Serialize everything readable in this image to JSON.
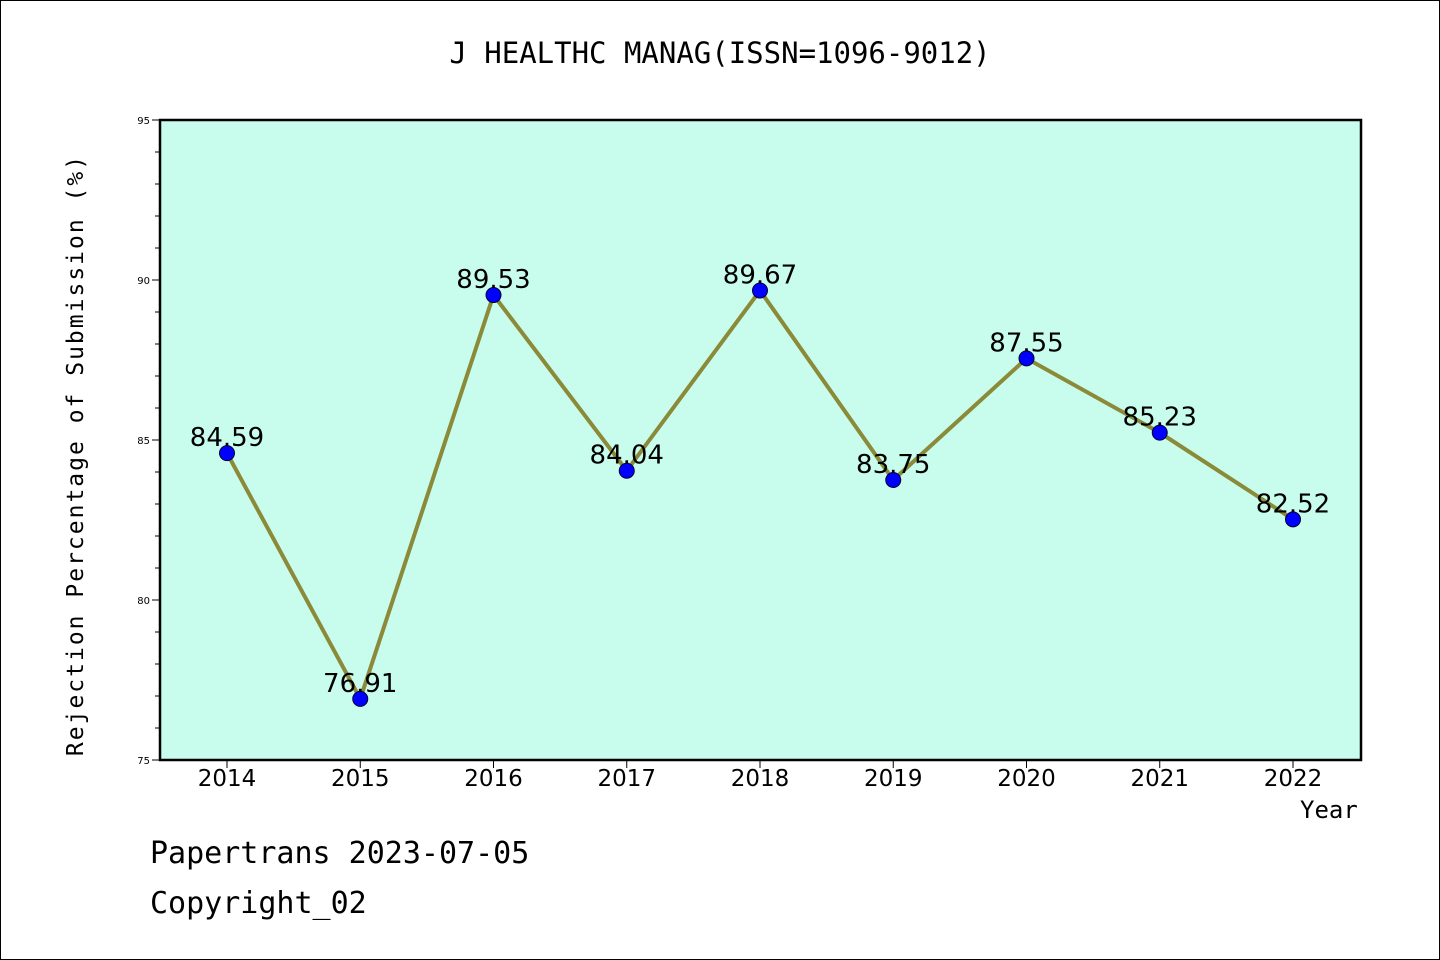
{
  "header": {
    "title": "J HEALTHC MANAG(ISSN=1096-9012)"
  },
  "footer": {
    "line1": "Papertrans 2023-07-05",
    "line2": "Copyright_02"
  },
  "colors": {
    "plot_bg": "#c8fced",
    "line": "#8a8a38",
    "marker": "#0000ff",
    "axis": "#000000"
  },
  "chart_data": {
    "type": "line",
    "title": "J HEALTHC MANAG(ISSN=1096-9012)",
    "xlabel": "Year",
    "ylabel": "Rejection Percentage of Submission (%)",
    "categories": [
      "2014",
      "2015",
      "2016",
      "2017",
      "2018",
      "2019",
      "2020",
      "2021",
      "2022"
    ],
    "values": [
      84.59,
      76.91,
      89.53,
      84.04,
      89.67,
      83.75,
      87.55,
      85.23,
      82.52
    ],
    "data_labels": [
      "84.59",
      "76.91",
      "89.53",
      "84.04",
      "89.67",
      "83.75",
      "87.55",
      "85.23",
      "82.52"
    ],
    "ylim": [
      75,
      95
    ],
    "yticks": [
      75,
      80,
      85,
      90,
      95
    ],
    "ytick_labels": [
      "75",
      "80",
      "85",
      "90",
      "95"
    ],
    "grid": false,
    "legend": "none"
  }
}
